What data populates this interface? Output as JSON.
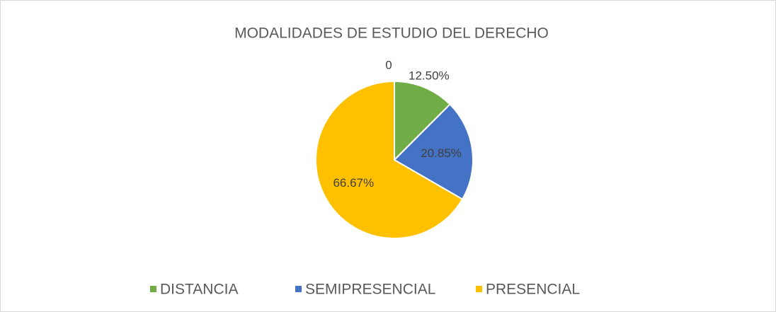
{
  "chart_data": {
    "type": "pie",
    "title": "MODALIDADES DE ESTUDIO DEL DERECHO",
    "categories": [
      "DISTANCIA",
      "SEMIPRESENCIAL",
      "PRESENCIAL",
      null
    ],
    "values": [
      12.5,
      20.85,
      66.67,
      0
    ],
    "value_labels": [
      "12.50%",
      "20.85%",
      "66.67%",
      "0"
    ],
    "colors": [
      "#70ad47",
      "#4472c4",
      "#ffc000",
      "#a5a5a5"
    ],
    "legend": "bottom"
  }
}
